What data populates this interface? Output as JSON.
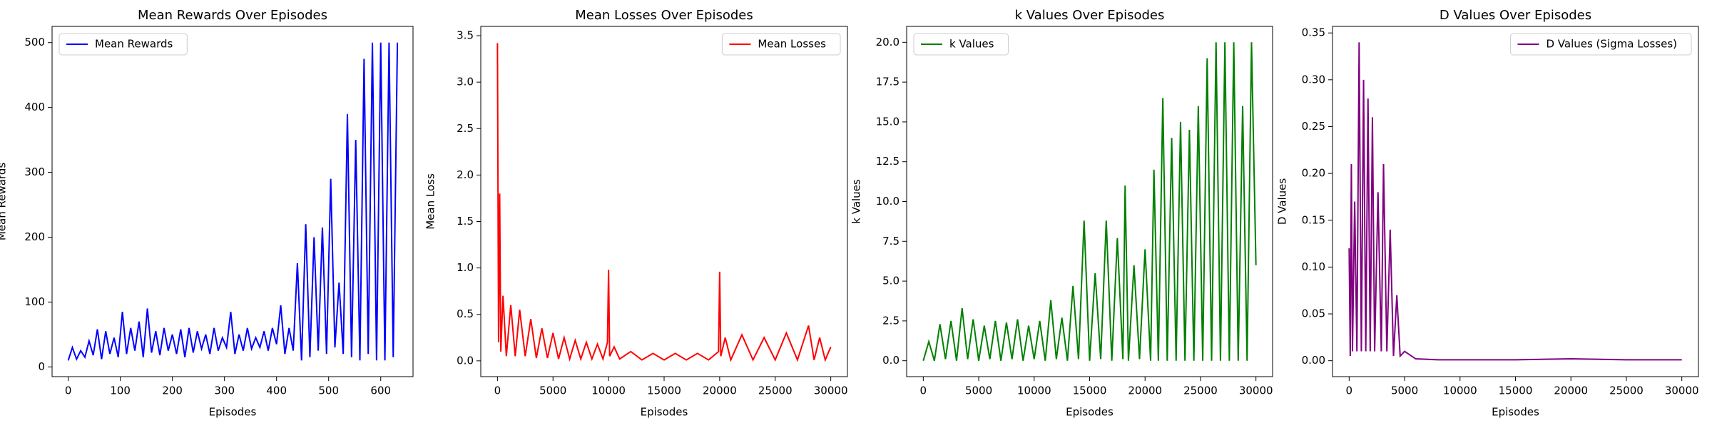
{
  "chart_data": [
    {
      "type": "line",
      "title": "Mean Rewards Over Episodes",
      "x_label": "Episodes",
      "y_label": "Mean Rewards",
      "legend": "upper left",
      "xlim": [
        -31,
        662
      ],
      "ylim": [
        -15,
        525
      ],
      "xticks": [
        0,
        100,
        200,
        300,
        400,
        500,
        600
      ],
      "yticks": [
        0,
        100,
        200,
        300,
        400,
        500
      ],
      "x": [
        0,
        8,
        16,
        24,
        32,
        40,
        48,
        56,
        64,
        72,
        80,
        88,
        96,
        104,
        112,
        120,
        128,
        136,
        144,
        152,
        160,
        168,
        176,
        184,
        192,
        200,
        208,
        216,
        224,
        232,
        240,
        248,
        256,
        264,
        272,
        280,
        288,
        296,
        304,
        312,
        320,
        328,
        336,
        344,
        352,
        360,
        368,
        376,
        384,
        392,
        400,
        408,
        416,
        424,
        432,
        440,
        448,
        456,
        464,
        472,
        480,
        488,
        496,
        504,
        512,
        520,
        528,
        536,
        544,
        552,
        560,
        568,
        576,
        584,
        592,
        600,
        608,
        616,
        624,
        632
      ],
      "series": [
        {
          "name": "Mean Rewards",
          "color": "#0000ff",
          "values": [
            10,
            30,
            12,
            25,
            15,
            40,
            18,
            58,
            12,
            55,
            20,
            45,
            15,
            85,
            20,
            60,
            25,
            70,
            15,
            90,
            22,
            55,
            18,
            60,
            25,
            50,
            20,
            58,
            15,
            60,
            22,
            55,
            28,
            50,
            20,
            60,
            25,
            45,
            30,
            85,
            20,
            50,
            25,
            60,
            28,
            45,
            30,
            55,
            25,
            60,
            35,
            95,
            20,
            60,
            25,
            160,
            10,
            220,
            15,
            200,
            25,
            215,
            20,
            290,
            30,
            130,
            20,
            390,
            15,
            350,
            10,
            475,
            20,
            500,
            10,
            500,
            10,
            500,
            15,
            500
          ]
        }
      ]
    },
    {
      "type": "line",
      "title": "Mean Losses Over Episodes",
      "x_label": "Episodes",
      "y_label": "Mean Loss",
      "legend": "upper right",
      "xlim": [
        -1500,
        31500
      ],
      "ylim": [
        -0.17,
        3.6
      ],
      "xticks": [
        0,
        5000,
        10000,
        15000,
        20000,
        25000,
        30000
      ],
      "yticks": [
        {
          "value": 0,
          "label": "0.0"
        },
        0.5,
        {
          "value": 1,
          "label": "1.0"
        },
        1.5,
        {
          "value": 2,
          "label": "2.0"
        },
        2.5,
        {
          "value": 3,
          "label": "3.0"
        },
        3.5
      ],
      "x": [
        0,
        100,
        200,
        300,
        500,
        800,
        1200,
        1600,
        2000,
        2500,
        3000,
        3500,
        4000,
        4500,
        5000,
        5500,
        6000,
        6500,
        7000,
        7500,
        8000,
        8500,
        9000,
        9500,
        9900,
        10000,
        10100,
        10500,
        11000,
        12000,
        13000,
        14000,
        15000,
        16000,
        17000,
        18000,
        19000,
        19900,
        20000,
        20100,
        20500,
        21000,
        22000,
        23000,
        24000,
        25000,
        26000,
        27000,
        28000,
        28500,
        29000,
        29500,
        30000
      ],
      "series": [
        {
          "name": "Mean Losses",
          "color": "#ff0000",
          "values": [
            3.42,
            0.2,
            1.8,
            0.1,
            0.7,
            0.05,
            0.6,
            0.05,
            0.55,
            0.05,
            0.45,
            0.03,
            0.35,
            0.03,
            0.3,
            0.02,
            0.25,
            0.02,
            0.22,
            0.02,
            0.2,
            0.02,
            0.18,
            0.02,
            0.2,
            0.98,
            0.05,
            0.15,
            0.02,
            0.1,
            0.01,
            0.08,
            0.01,
            0.08,
            0.01,
            0.08,
            0.01,
            0.1,
            0.96,
            0.05,
            0.25,
            0.01,
            0.28,
            0.01,
            0.25,
            0.01,
            0.3,
            0.01,
            0.38,
            0.01,
            0.25,
            0.01,
            0.15
          ]
        }
      ]
    },
    {
      "type": "line",
      "title": "k Values Over Episodes",
      "x_label": "Episodes",
      "y_label": "k Values",
      "legend": "upper left",
      "xlim": [
        -1500,
        31500
      ],
      "ylim": [
        -1,
        21
      ],
      "xticks": [
        0,
        5000,
        10000,
        15000,
        20000,
        25000,
        30000
      ],
      "yticks": [
        {
          "value": 0,
          "label": "0.0"
        },
        2.5,
        {
          "value": 5,
          "label": "5.0"
        },
        7.5,
        {
          "value": 10,
          "label": "10.0"
        },
        12.5,
        {
          "value": 15,
          "label": "15.0"
        },
        17.5,
        {
          "value": 20,
          "label": "20.0"
        }
      ],
      "x": [
        0,
        500,
        1000,
        1500,
        2000,
        2500,
        3000,
        3500,
        4000,
        4500,
        5000,
        5500,
        6000,
        6500,
        7000,
        7500,
        8000,
        8500,
        9000,
        9500,
        10000,
        10500,
        11000,
        11500,
        12000,
        12500,
        13000,
        13500,
        14000,
        14500,
        15000,
        15500,
        16000,
        16500,
        17000,
        17500,
        18000,
        18200,
        18500,
        19000,
        19500,
        20000,
        20500,
        20800,
        21200,
        21600,
        22000,
        22400,
        22800,
        23200,
        23600,
        24000,
        24400,
        24800,
        25200,
        25600,
        26000,
        26400,
        26800,
        27200,
        27600,
        28000,
        28400,
        28800,
        29200,
        29600,
        30000
      ],
      "series": [
        {
          "name": "k Values",
          "color": "#008000",
          "values": [
            0,
            1.2,
            0,
            2.3,
            0.1,
            2.5,
            0,
            3.3,
            0.1,
            2.6,
            0,
            2.2,
            0.1,
            2.5,
            0,
            2.4,
            0.1,
            2.6,
            0,
            2.2,
            0.1,
            2.5,
            0,
            3.8,
            0.1,
            2.7,
            0,
            4.7,
            0.1,
            8.8,
            0,
            5.5,
            0.1,
            8.8,
            0,
            7.7,
            0.1,
            11,
            0,
            6,
            0.1,
            7,
            0,
            12,
            0,
            16.5,
            0,
            14,
            0,
            15,
            0,
            14.5,
            0,
            16,
            0,
            19,
            0,
            20,
            0,
            20,
            0,
            20,
            0,
            16,
            0,
            20,
            6
          ]
        }
      ]
    },
    {
      "type": "line",
      "title": "D Values Over Episodes",
      "x_label": "Episodes",
      "y_label": "D Values",
      "legend": "upper right",
      "xlim": [
        -1500,
        31500
      ],
      "ylim": [
        -0.017,
        0.357
      ],
      "xticks": [
        0,
        5000,
        10000,
        15000,
        20000,
        25000,
        30000
      ],
      "yticks": [
        {
          "value": 0,
          "label": "0.00"
        },
        0.05,
        {
          "value": 0.1,
          "label": "0.10"
        },
        0.15,
        {
          "value": 0.2,
          "label": "0.20"
        },
        0.25,
        {
          "value": 0.3,
          "label": "0.30"
        },
        0.35
      ],
      "x": [
        0,
        100,
        200,
        300,
        500,
        700,
        900,
        1100,
        1300,
        1500,
        1700,
        1900,
        2100,
        2300,
        2600,
        2900,
        3100,
        3400,
        3700,
        4000,
        4300,
        4600,
        5000,
        6000,
        8000,
        10000,
        15000,
        20000,
        25000,
        30000
      ],
      "series": [
        {
          "name": "D Values (Sigma Losses)",
          "color": "#800080",
          "values": [
            0.12,
            0.005,
            0.21,
            0.01,
            0.17,
            0.01,
            0.34,
            0.01,
            0.3,
            0.01,
            0.28,
            0.01,
            0.26,
            0.01,
            0.18,
            0.01,
            0.21,
            0.01,
            0.14,
            0.005,
            0.07,
            0.005,
            0.01,
            0.002,
            0.001,
            0.001,
            0.001,
            0.002,
            0.001,
            0.001
          ]
        }
      ]
    }
  ]
}
